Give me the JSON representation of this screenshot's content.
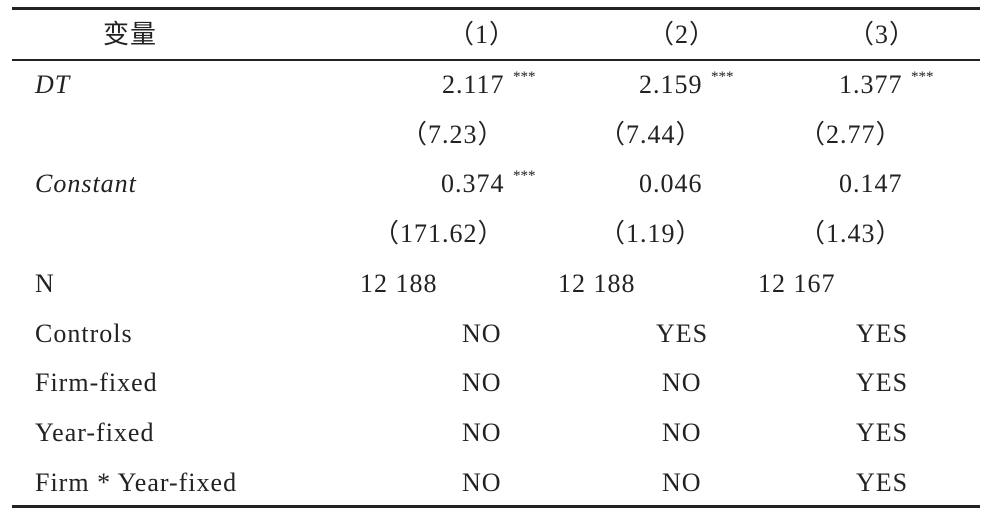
{
  "header": [
    "变量",
    "（1）",
    "（2）",
    "（3）"
  ],
  "rows": [
    {
      "label": "DT",
      "cells": [
        {
          "value": "2.117",
          "sig": "***"
        },
        {
          "value": "2.159",
          "sig": "***"
        },
        {
          "value": "1.377",
          "sig": "***"
        }
      ]
    },
    {
      "label": null,
      "cells": [
        {
          "value": "（7.23）"
        },
        {
          "value": "（7.44）"
        },
        {
          "value": "（2.77）"
        }
      ]
    },
    {
      "label": "Constant",
      "cells": [
        {
          "value": "0.374",
          "sig": "***"
        },
        {
          "value": "0.046"
        },
        {
          "value": "0.147"
        }
      ]
    },
    {
      "label": null,
      "cells": [
        {
          "value": "（171.62）"
        },
        {
          "value": "（1.19）"
        },
        {
          "value": "（1.43）"
        }
      ]
    },
    {
      "label": "N",
      "cells": [
        {
          "value": "12 188"
        },
        {
          "value": "12 188"
        },
        {
          "value": "12 167"
        }
      ]
    },
    {
      "label": "Controls",
      "cells": [
        {
          "value": "NO"
        },
        {
          "value": "YES"
        },
        {
          "value": "YES"
        }
      ]
    },
    {
      "label": "Firm-fixed",
      "cells": [
        {
          "value": "NO"
        },
        {
          "value": "NO"
        },
        {
          "value": "YES"
        }
      ]
    },
    {
      "label": "Year-fixed",
      "cells": [
        {
          "value": "NO"
        },
        {
          "value": "NO"
        },
        {
          "value": "YES"
        }
      ]
    },
    {
      "label": "Firm * Year-fixed",
      "cells": [
        {
          "value": "NO"
        },
        {
          "value": "NO"
        },
        {
          "value": "YES"
        }
      ]
    }
  ]
}
